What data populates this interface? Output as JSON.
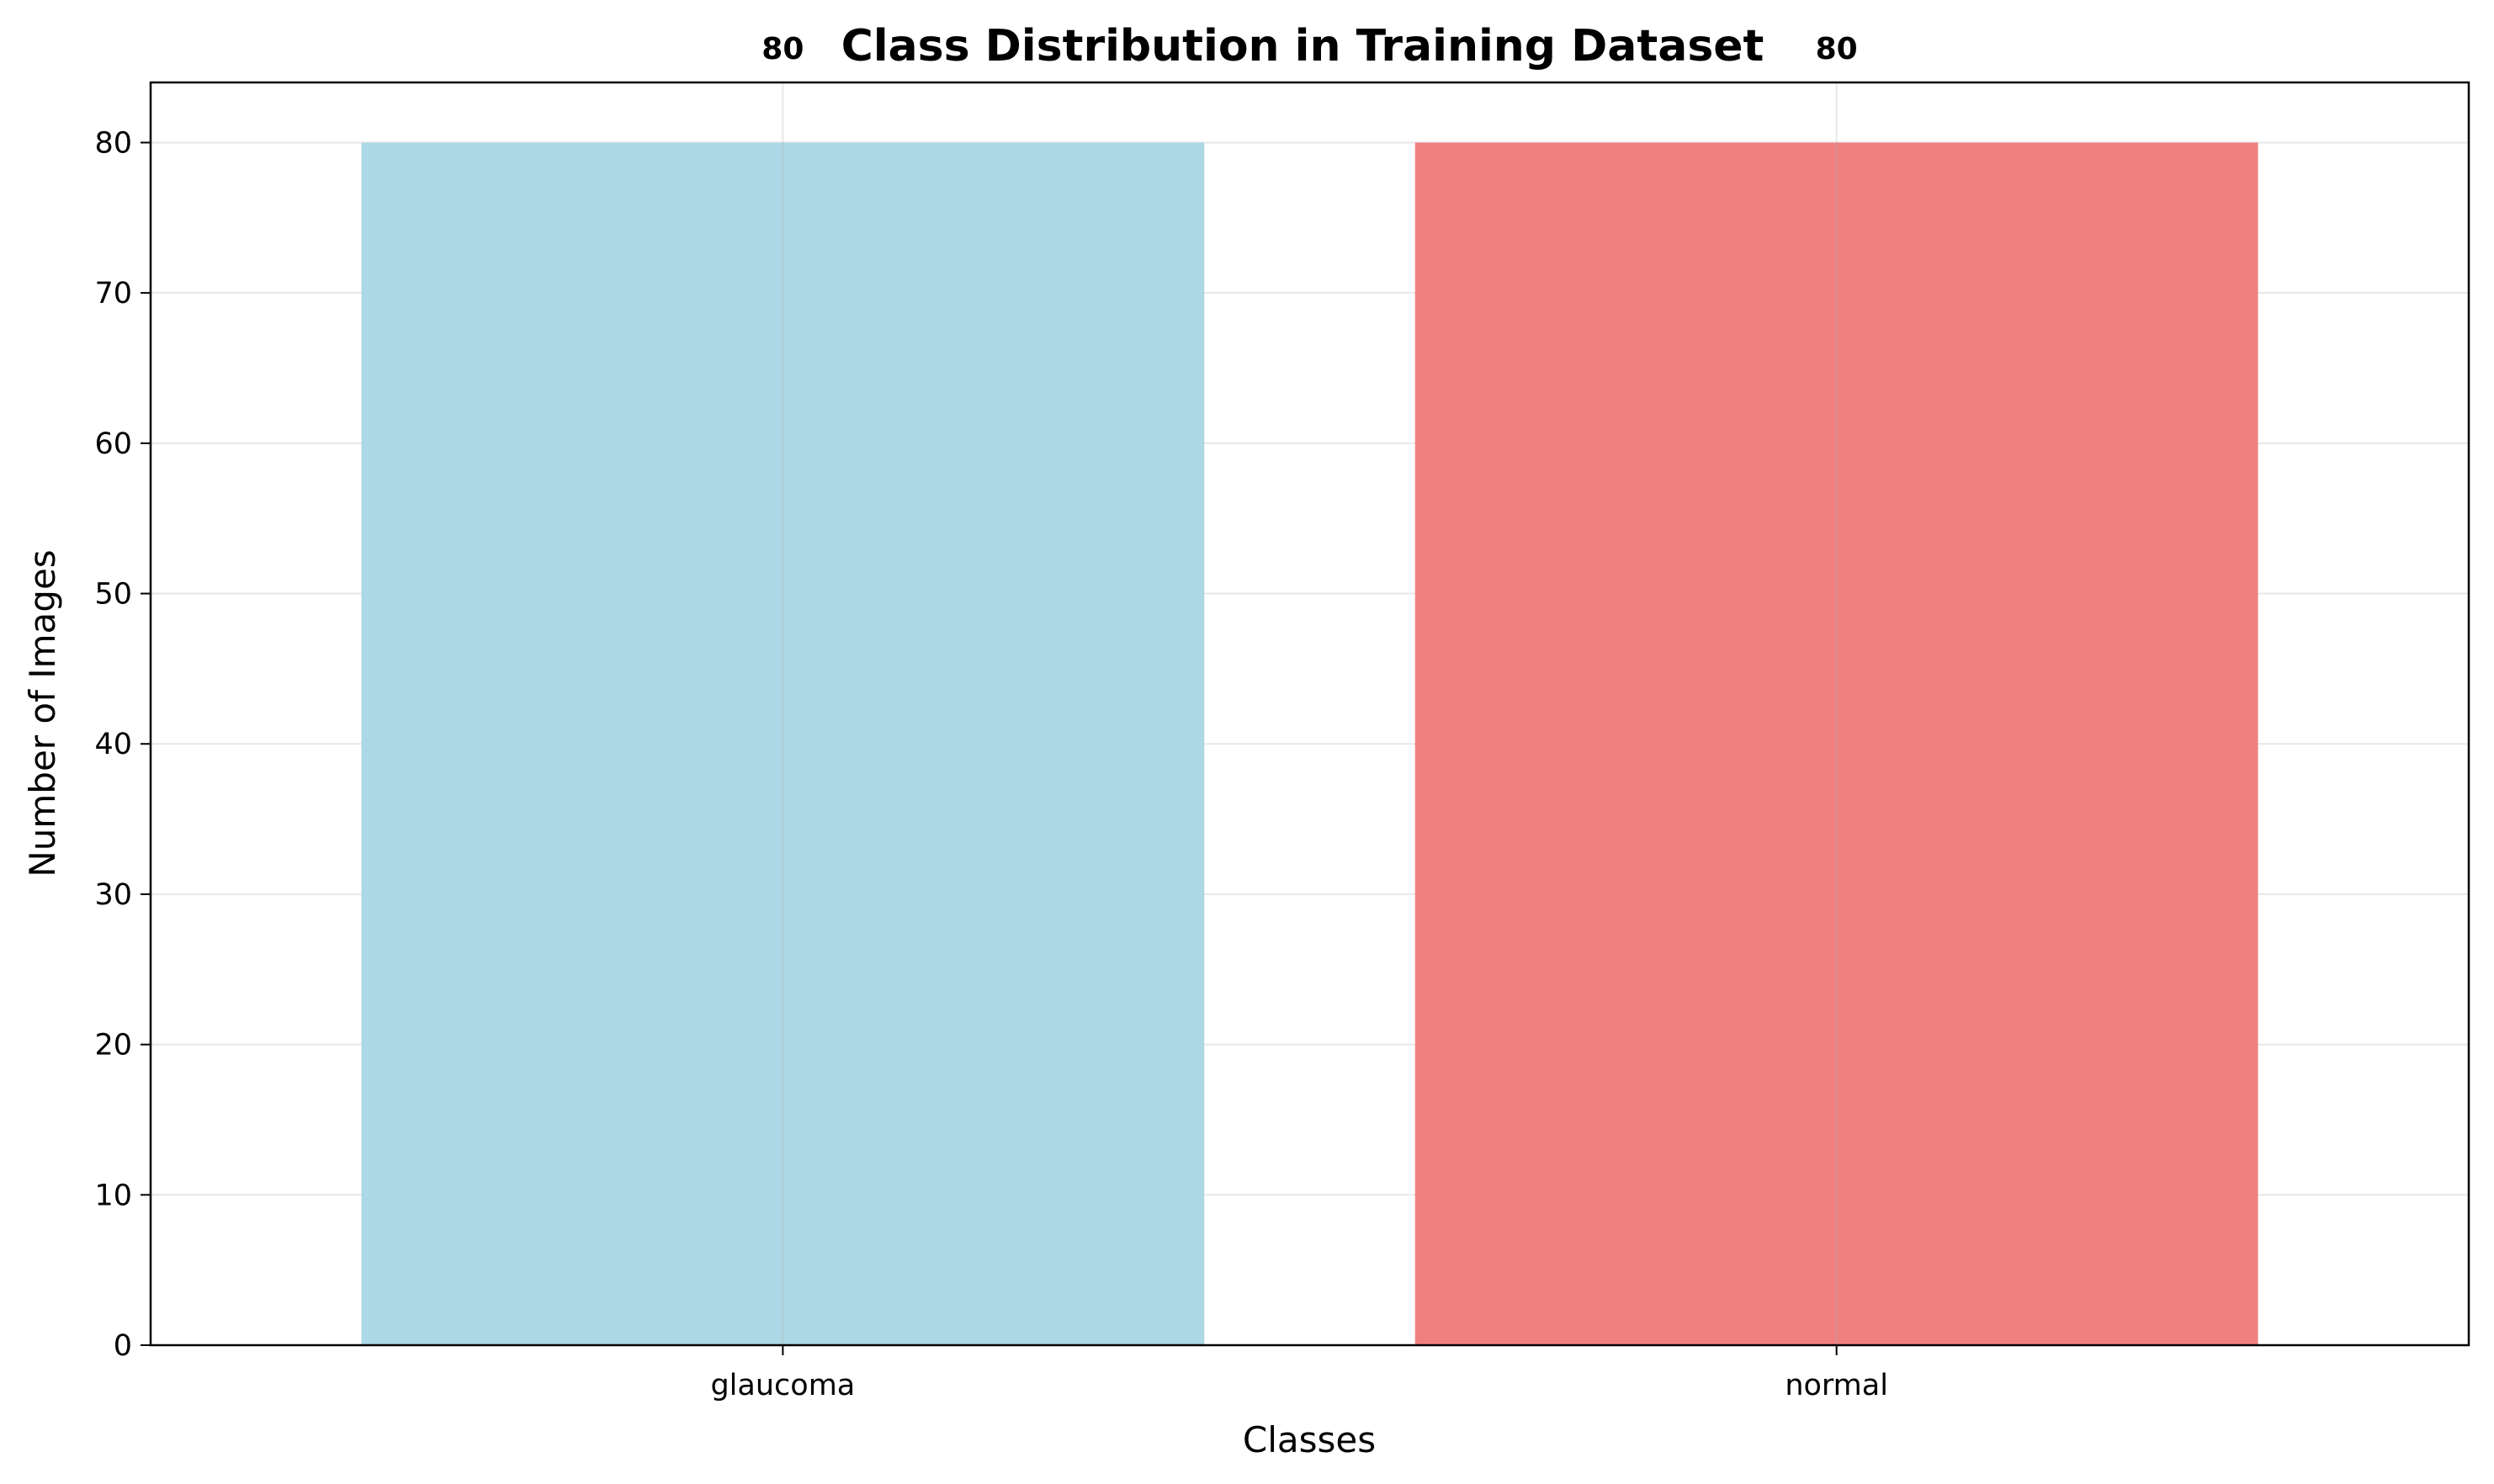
{
  "chart_data": {
    "type": "bar",
    "title": "Class Distribution in Training Dataset",
    "xlabel": "Classes",
    "ylabel": "Number of Images",
    "categories": [
      "glaucoma",
      "normal"
    ],
    "values": [
      80,
      80
    ],
    "data_labels": [
      "80",
      "80"
    ],
    "colors": [
      "#add8e6",
      "#f08080"
    ],
    "ylim": [
      0,
      84
    ],
    "yticks": [
      0,
      10,
      20,
      30,
      40,
      50,
      60,
      70,
      80
    ],
    "grid": true,
    "legend": "none"
  }
}
